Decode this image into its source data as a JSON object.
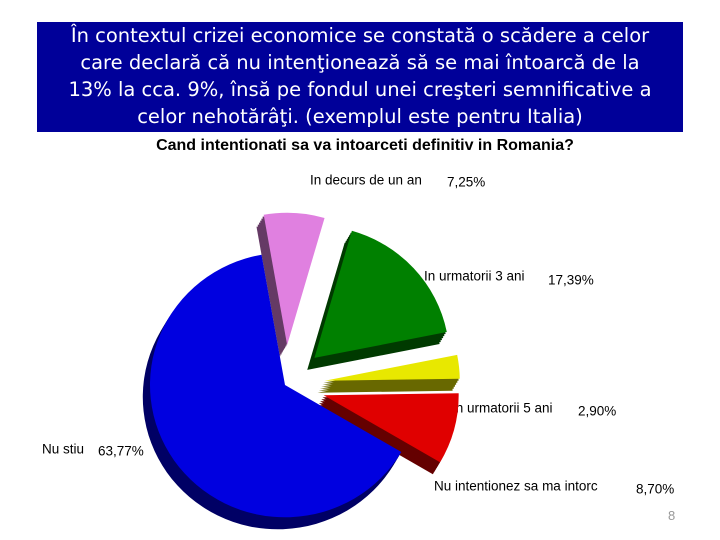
{
  "header": {
    "lines": [
      "În contextul crizei economice se constată o scădere a celor",
      "care declară că nu intenţionează să se mai întoarcă de la",
      "13% la cca. 9%, însă pe fondul unei creşteri semnificative a",
      "celor nehotărâţi. (exemplul este pentru Italia)"
    ]
  },
  "page_number": "8",
  "chart_data": {
    "type": "pie",
    "title": "Cand intentionati sa va intoarceti definitiv in Romania?",
    "categories": [
      "In decurs de un an",
      "In urmatorii 3 ani",
      "In urmatorii 5 ani",
      "Nu intentionez sa ma intorc",
      "Nu stiu"
    ],
    "values": [
      7.25,
      17.39,
      2.9,
      8.7,
      63.77
    ],
    "value_labels": [
      "7,25%",
      "17,39%",
      "2,90%",
      "8,70%",
      "63,77%"
    ],
    "colors": [
      "#e080e0",
      "#008000",
      "#e8e800",
      "#e00000",
      "#0000e0"
    ]
  }
}
